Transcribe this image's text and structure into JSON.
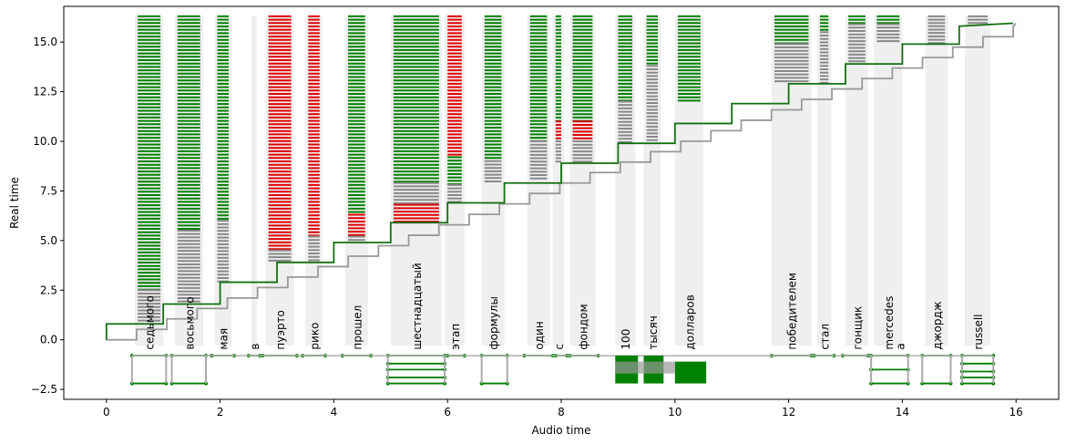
{
  "chart_data": {
    "type": "alignment-plot",
    "xlabel": "Audio time",
    "ylabel": "Real time",
    "xlim": [
      -0.75,
      16.75
    ],
    "ylim": [
      -3.0,
      16.8
    ],
    "xticks": [
      0,
      2,
      4,
      6,
      8,
      10,
      12,
      14,
      16
    ],
    "yticks": [
      -2.5,
      0.0,
      2.5,
      5.0,
      7.5,
      10.0,
      12.5,
      15.0
    ],
    "ytick_labels": [
      "−2.5",
      "0.0",
      "2.5",
      "5.0",
      "7.5",
      "10.0",
      "12.5",
      "15.0"
    ],
    "colors": {
      "accepted": "#008000",
      "rejected": "#e00000",
      "neutral": "#888888",
      "band": "#efefef",
      "reference": "#999999"
    },
    "words": [
      {
        "label": "седьмого",
        "start": 0.5,
        "end": 1.0,
        "segments": [
          [
            2.5,
            16.3,
            "green"
          ],
          [
            0.9,
            2.5,
            "neutral"
          ]
        ]
      },
      {
        "label": "восьмого",
        "start": 1.2,
        "end": 1.7,
        "segments": [
          [
            5.5,
            16.3,
            "green"
          ],
          [
            1.9,
            5.5,
            "neutral"
          ]
        ]
      },
      {
        "label": "мая",
        "start": 1.9,
        "end": 2.2,
        "segments": [
          [
            6.0,
            16.3,
            "green"
          ],
          [
            2.9,
            6.0,
            "neutral"
          ]
        ]
      },
      {
        "label": "в",
        "start": 2.55,
        "end": 2.65,
        "segments": [
          [
            5.0,
            16.3,
            "red"
          ],
          [
            2.9,
            5.0,
            "neutral"
          ]
        ]
      },
      {
        "label": "пуэрто",
        "start": 2.8,
        "end": 3.3,
        "segments": [
          [
            4.5,
            16.3,
            "red"
          ],
          [
            3.9,
            4.5,
            "neutral"
          ]
        ]
      },
      {
        "label": "рико",
        "start": 3.5,
        "end": 3.8,
        "segments": [
          [
            5.2,
            16.3,
            "red"
          ],
          [
            3.9,
            5.2,
            "neutral"
          ]
        ]
      },
      {
        "label": "прошел",
        "start": 4.2,
        "end": 4.6,
        "segments": [
          [
            6.3,
            16.3,
            "green"
          ],
          [
            5.2,
            6.3,
            "red"
          ],
          [
            4.9,
            5.2,
            "neutral"
          ]
        ]
      },
      {
        "label": "шестнадцатый",
        "start": 5.0,
        "end": 5.9,
        "segments": [
          [
            7.9,
            16.3,
            "green"
          ],
          [
            6.8,
            7.9,
            "neutral"
          ],
          [
            5.9,
            6.8,
            "red"
          ]
        ]
      },
      {
        "label": "этап",
        "start": 5.95,
        "end": 6.3,
        "segments": [
          [
            9.2,
            16.3,
            "red"
          ],
          [
            7.8,
            9.2,
            "green"
          ],
          [
            6.9,
            7.8,
            "neutral"
          ]
        ]
      },
      {
        "label": "формулы",
        "start": 6.6,
        "end": 7.0,
        "segments": [
          [
            9.0,
            16.3,
            "green"
          ],
          [
            7.9,
            9.0,
            "neutral"
          ]
        ]
      },
      {
        "label": "один",
        "start": 7.4,
        "end": 7.8,
        "segments": [
          [
            10.0,
            16.3,
            "green"
          ],
          [
            8.0,
            10.0,
            "neutral"
          ]
        ]
      },
      {
        "label": "с",
        "start": 7.85,
        "end": 8.05,
        "segments": [
          [
            11.0,
            16.3,
            "green"
          ],
          [
            10.0,
            11.0,
            "red"
          ],
          [
            8.9,
            10.0,
            "neutral"
          ]
        ]
      },
      {
        "label": "фондом",
        "start": 8.15,
        "end": 8.6,
        "segments": [
          [
            11.0,
            16.3,
            "green"
          ],
          [
            10.0,
            11.0,
            "red"
          ],
          [
            8.9,
            10.0,
            "neutral"
          ]
        ]
      },
      {
        "label": "100",
        "start": 8.95,
        "end": 9.3,
        "segments": [
          [
            12.0,
            16.3,
            "green"
          ],
          [
            9.9,
            12.0,
            "neutral"
          ]
        ]
      },
      {
        "label": "тысяч",
        "start": 9.45,
        "end": 9.75,
        "segments": [
          [
            13.8,
            16.3,
            "green"
          ],
          [
            9.9,
            13.8,
            "neutral"
          ]
        ]
      },
      {
        "label": "долларов",
        "start": 10.0,
        "end": 10.5,
        "segments": [
          [
            11.9,
            16.3,
            "green"
          ]
        ]
      },
      {
        "label": "победителем",
        "start": 11.7,
        "end": 12.4,
        "segments": [
          [
            14.9,
            16.3,
            "green"
          ],
          [
            12.9,
            14.9,
            "neutral"
          ]
        ]
      },
      {
        "label": "стал",
        "start": 12.5,
        "end": 12.75,
        "segments": [
          [
            15.5,
            16.3,
            "green"
          ],
          [
            12.9,
            15.5,
            "neutral"
          ]
        ]
      },
      {
        "label": "гонщик",
        "start": 13.0,
        "end": 13.4,
        "segments": [
          [
            15.9,
            16.3,
            "green"
          ],
          [
            13.9,
            15.9,
            "neutral"
          ]
        ]
      },
      {
        "label": "mercedes",
        "start": 13.5,
        "end": 14.0,
        "segments": [
          [
            15.9,
            16.3,
            "green"
          ],
          [
            14.9,
            15.9,
            "neutral"
          ]
        ]
      },
      {
        "label": "джордж",
        "start": 14.4,
        "end": 14.8,
        "segments": [
          [
            15.8,
            16.3,
            "neutral"
          ],
          [
            14.9,
            15.8,
            "neutral"
          ]
        ]
      },
      {
        "label": "russell",
        "start": 15.1,
        "end": 15.55,
        "segments": [
          [
            15.8,
            16.3,
            "neutral"
          ]
        ]
      }
    ],
    "extra_labels": [
      {
        "label": "а",
        "x": 13.95
      }
    ],
    "step_green": [
      [
        0,
        0
      ],
      [
        0,
        0.8
      ],
      [
        1,
        0.8
      ],
      [
        1,
        1.8
      ],
      [
        2,
        1.8
      ],
      [
        2,
        2.9
      ],
      [
        3,
        2.9
      ],
      [
        3,
        3.9
      ],
      [
        4,
        3.9
      ],
      [
        4,
        4.9
      ],
      [
        5,
        4.9
      ],
      [
        5,
        5.9
      ],
      [
        6,
        5.9
      ],
      [
        6,
        6.9
      ],
      [
        7,
        6.9
      ],
      [
        7,
        7.9
      ],
      [
        8,
        7.9
      ],
      [
        8,
        8.9
      ],
      [
        9,
        8.9
      ],
      [
        9,
        9.9
      ],
      [
        10,
        9.9
      ],
      [
        10,
        10.9
      ],
      [
        11,
        10.9
      ],
      [
        11,
        11.9
      ],
      [
        12,
        11.9
      ],
      [
        12,
        12.9
      ],
      [
        13,
        12.9
      ],
      [
        13,
        13.9
      ],
      [
        14,
        13.9
      ],
      [
        14,
        14.9
      ],
      [
        15,
        14.9
      ],
      [
        15,
        15.8
      ],
      [
        15.95,
        15.95
      ]
    ],
    "step_reference_end": [
      15.95,
      15.95
    ],
    "lattice": [
      {
        "start": 0.45,
        "end": 1.05,
        "rows": [
          -0.8,
          -2.2
        ]
      },
      {
        "start": 1.15,
        "end": 1.75,
        "rows": [
          -0.8,
          -2.2
        ]
      },
      {
        "start": 1.85,
        "end": 2.25,
        "rows": [
          -0.8
        ]
      },
      {
        "start": 2.5,
        "end": 2.7,
        "rows": [
          -0.8
        ]
      },
      {
        "start": 2.75,
        "end": 3.35,
        "rows": [
          -0.8
        ]
      },
      {
        "start": 3.45,
        "end": 3.85,
        "rows": [
          -0.8
        ]
      },
      {
        "start": 4.15,
        "end": 4.65,
        "rows": [
          -0.8
        ]
      },
      {
        "start": 4.95,
        "end": 5.95,
        "rows": [
          -0.8,
          -1.2,
          -1.5,
          -1.9,
          -2.2
        ]
      },
      {
        "start": 6.0,
        "end": 6.3,
        "rows": [
          -0.8
        ]
      },
      {
        "start": 6.6,
        "end": 7.05,
        "rows": [
          -0.8,
          -2.2
        ]
      },
      {
        "start": 7.35,
        "end": 7.85,
        "rows": [
          -0.8
        ]
      },
      {
        "start": 7.9,
        "end": 8.1,
        "rows": [
          -0.8
        ]
      },
      {
        "start": 8.15,
        "end": 8.65,
        "rows": [
          -0.8
        ]
      },
      {
        "start": 11.7,
        "end": 12.4,
        "rows": [
          -0.8
        ]
      },
      {
        "start": 12.45,
        "end": 12.8,
        "rows": [
          -0.8
        ]
      },
      {
        "start": 12.95,
        "end": 13.4,
        "rows": [
          -0.8
        ]
      },
      {
        "start": 13.45,
        "end": 14.1,
        "rows": [
          -0.8,
          -1.5,
          -2.2
        ]
      },
      {
        "start": 14.35,
        "end": 14.85,
        "rows": [
          -0.8,
          -2.2
        ]
      },
      {
        "start": 15.05,
        "end": 15.6,
        "rows": [
          -0.8,
          -1.2,
          -1.6,
          -1.9,
          -2.2
        ]
      }
    ],
    "lattice_blocks": [
      {
        "start": 8.95,
        "end": 9.35,
        "ymin": -2.2,
        "ymax": -0.8
      },
      {
        "start": 9.45,
        "end": 9.8,
        "ymin": -2.2,
        "ymax": -0.8
      },
      {
        "start": 10.0,
        "end": 10.55,
        "ymin": -2.2,
        "ymax": -1.1
      }
    ]
  }
}
